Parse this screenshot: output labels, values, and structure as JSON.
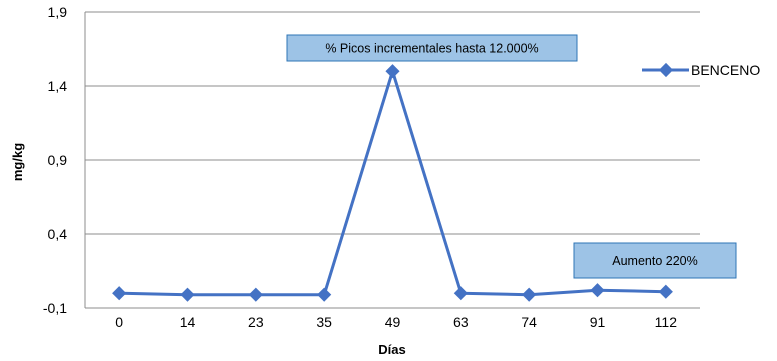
{
  "chart_data": {
    "type": "line",
    "title": "",
    "xlabel": "Días",
    "ylabel": "mg/kg",
    "categories": [
      "0",
      "14",
      "23",
      "35",
      "49",
      "63",
      "74",
      "91",
      "112"
    ],
    "yticks": [
      "1,9",
      "1,4",
      "0,9",
      "0,4",
      "-0,1"
    ],
    "ylim": [
      -0.1,
      1.9
    ],
    "grid": "horizontal",
    "legend_position": "right",
    "series": [
      {
        "name": "BENCENO",
        "color": "#4472C4",
        "values": [
          0.0,
          -0.01,
          -0.01,
          -0.01,
          1.5,
          0.0,
          -0.01,
          0.02,
          0.01
        ]
      }
    ],
    "annotations": [
      {
        "text": "% Picos incrementales hasta 12.000%"
      },
      {
        "text": "Aumento 220%"
      }
    ]
  }
}
